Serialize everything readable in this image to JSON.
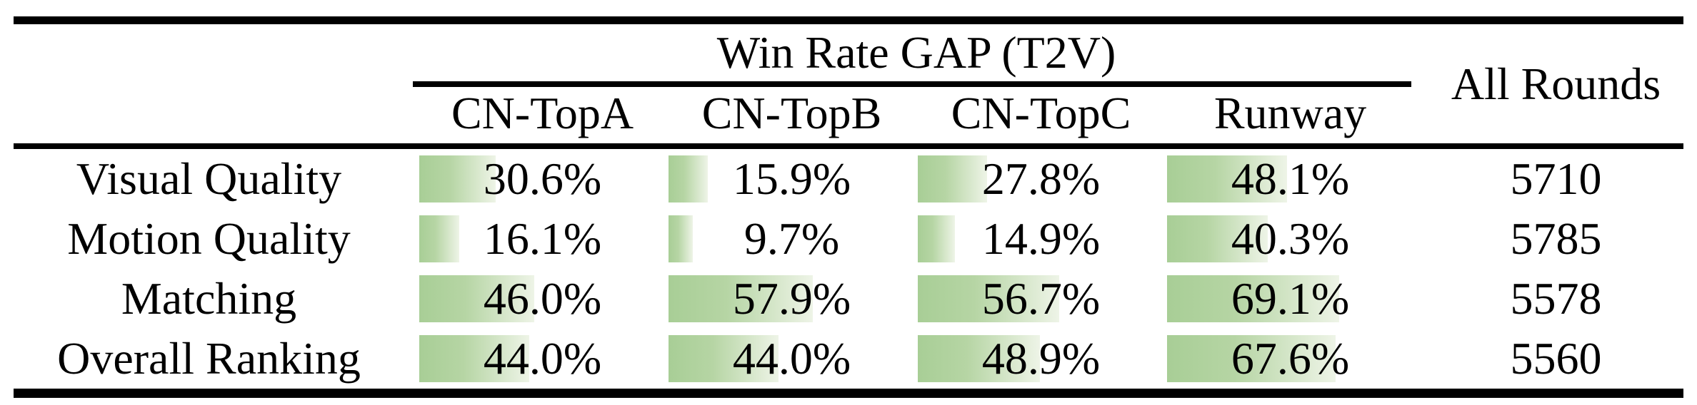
{
  "table": {
    "group_header": "Win Rate GAP (T2V)",
    "all_rounds_header": "All Rounds",
    "columns": [
      "CN-TopA",
      "CN-TopB",
      "CN-TopC",
      "Runway"
    ],
    "rows": [
      {
        "label": "Visual Quality",
        "values": [
          30.6,
          15.9,
          27.8,
          48.1
        ],
        "display": [
          "30.6%",
          "15.9%",
          "27.8%",
          "48.1%"
        ],
        "all_rounds": "5710"
      },
      {
        "label": "Motion Quality",
        "values": [
          16.1,
          9.7,
          14.9,
          40.3
        ],
        "display": [
          "16.1%",
          "9.7%",
          "14.9%",
          "40.3%"
        ],
        "all_rounds": "5785"
      },
      {
        "label": "Matching",
        "values": [
          46.0,
          57.9,
          56.7,
          69.1
        ],
        "display": [
          "46.0%",
          "57.9%",
          "56.7%",
          "69.1%"
        ],
        "all_rounds": "5578"
      },
      {
        "label": "Overall Ranking",
        "values": [
          44.0,
          44.0,
          48.9,
          67.6
        ],
        "display": [
          "44.0%",
          "44.0%",
          "48.9%",
          "67.6%"
        ],
        "all_rounds": "5560"
      }
    ],
    "colors": {
      "bar_gradient_start": "#a8ce96",
      "bar_gradient_end": "#eef4e7",
      "rule": "#000000",
      "text": "#000000",
      "background": "#ffffff"
    }
  },
  "chart_data": {
    "type": "table",
    "title": "Win Rate GAP (T2V)",
    "categories": [
      "Visual Quality",
      "Motion Quality",
      "Matching",
      "Overall Ranking"
    ],
    "series": [
      {
        "name": "CN-TopA",
        "values": [
          30.6,
          16.1,
          46.0,
          44.0
        ]
      },
      {
        "name": "CN-TopB",
        "values": [
          15.9,
          9.7,
          57.9,
          44.0
        ]
      },
      {
        "name": "CN-TopC",
        "values": [
          27.8,
          14.9,
          56.7,
          48.9
        ]
      },
      {
        "name": "Runway",
        "values": [
          48.1,
          40.3,
          69.1,
          67.6
        ]
      }
    ],
    "all_rounds": [
      5710,
      5785,
      5578,
      5560
    ],
    "unit": "%",
    "layout_hints": "left-aligned green gradient data bars behind centered percentage text; 100% equals full cell width; booktabs-style black rules top/middle/bottom"
  }
}
